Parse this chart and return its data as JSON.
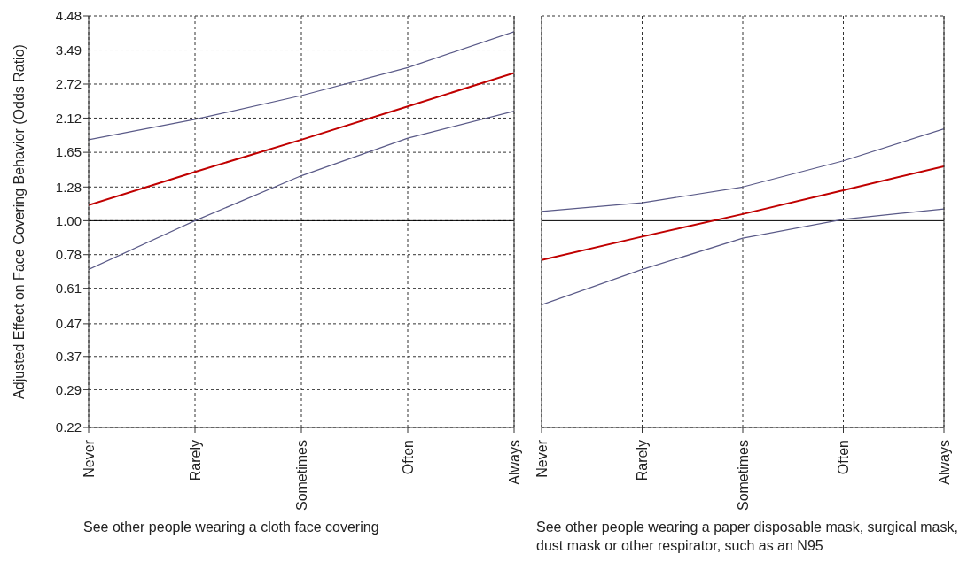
{
  "chart_data": [
    {
      "type": "line",
      "ylabel": "Adjusted Effect on Face Covering Behavior (Odds Ratio)",
      "xlabel": "See other people wearing a cloth face covering",
      "categories": [
        "Never",
        "Rarely",
        "Sometimes",
        "Often",
        "Always"
      ],
      "log": true,
      "ylim": [
        0.22,
        4.48
      ],
      "yticks": [
        0.22,
        0.29,
        0.37,
        0.47,
        0.61,
        0.78,
        {
          "value": 1,
          "label": "1.00"
        },
        1.28,
        1.65,
        2.12,
        2.72,
        3.49,
        4.48
      ],
      "grid": true,
      "marker": "none",
      "line_style": "solid",
      "ref_lines": [
        {
          "axis": "y",
          "value": 1.0,
          "color": "#000000"
        }
      ],
      "series": [
        {
          "color": "#5a5a88",
          "values": [
            1.81,
            2.1,
            2.5,
            3.07,
            3.99
          ]
        },
        {
          "color": "#c00000",
          "values": [
            1.12,
            1.43,
            1.81,
            2.31,
            2.95
          ]
        },
        {
          "color": "#5a5a88",
          "values": [
            0.7,
            1.0,
            1.39,
            1.83,
            2.23
          ]
        }
      ]
    },
    {
      "type": "line",
      "xlabel": "See other people wearing a paper disposable mask, surgical mask, dust mask or other respirator, such as an N95",
      "categories": [
        "Never",
        "Rarely",
        "Sometimes",
        "Often",
        "Always"
      ],
      "log": true,
      "ylim": [
        0.22,
        4.48
      ],
      "yticks": [
        0.22,
        0.29,
        0.37,
        0.47,
        0.61,
        0.78,
        1.0,
        1.28,
        1.65,
        2.12,
        2.72,
        3.49,
        4.48
      ],
      "tick_labels": "x",
      "grid": true,
      "marker": "none",
      "line_style": "solid",
      "ref_lines": [
        {
          "axis": "y",
          "value": 1.0,
          "color": "#000000"
        }
      ],
      "series": [
        {
          "color": "#5a5a88",
          "values": [
            1.07,
            1.14,
            1.28,
            1.55,
            1.96
          ]
        },
        {
          "color": "#c00000",
          "values": [
            0.75,
            0.89,
            1.05,
            1.25,
            1.49
          ]
        },
        {
          "color": "#5a5a88",
          "values": [
            0.54,
            0.7,
            0.88,
            1.01,
            1.09
          ]
        }
      ]
    }
  ]
}
